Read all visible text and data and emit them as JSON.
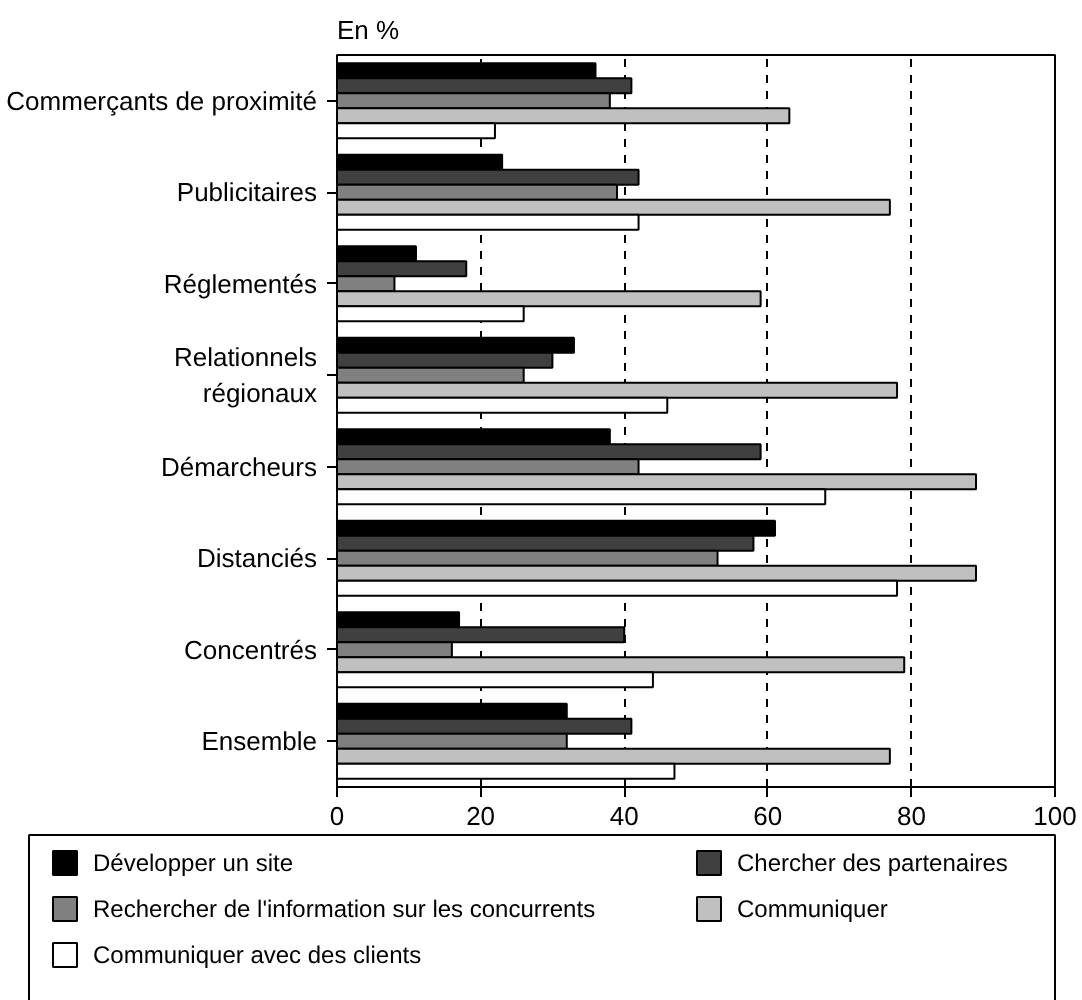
{
  "chart_data": {
    "type": "bar",
    "orientation": "horizontal",
    "categories": [
      "Commerçants de proximité",
      "Publicitaires",
      "Réglementés",
      "Relationnels\nrégionaux",
      "Démarcheurs",
      "Distanciés",
      "Concentrés",
      "Ensemble"
    ],
    "series": [
      {
        "name": "Développer un site",
        "color": "#000000",
        "values": [
          36,
          23,
          11,
          33,
          38,
          61,
          17,
          32
        ]
      },
      {
        "name": "Chercher des partenaires",
        "color": "#404040",
        "values": [
          41,
          42,
          18,
          30,
          59,
          58,
          40,
          41
        ]
      },
      {
        "name": "Rechercher de l'information sur les concurrents",
        "color": "#808080",
        "values": [
          38,
          39,
          8,
          26,
          42,
          53,
          16,
          32
        ]
      },
      {
        "name": "Communiquer",
        "color": "#c0c0c0",
        "values": [
          63,
          77,
          59,
          78,
          89,
          89,
          79,
          77
        ]
      },
      {
        "name": "Communiquer avec des clients",
        "color": "#ffffff",
        "values": [
          22,
          42,
          26,
          46,
          68,
          78,
          44,
          47
        ]
      }
    ],
    "xlim": [
      0,
      100
    ],
    "xticks": [
      0,
      20,
      40,
      60,
      80,
      100
    ],
    "grid": "x",
    "legend": "bottom",
    "annotations": [
      "En %"
    ]
  }
}
